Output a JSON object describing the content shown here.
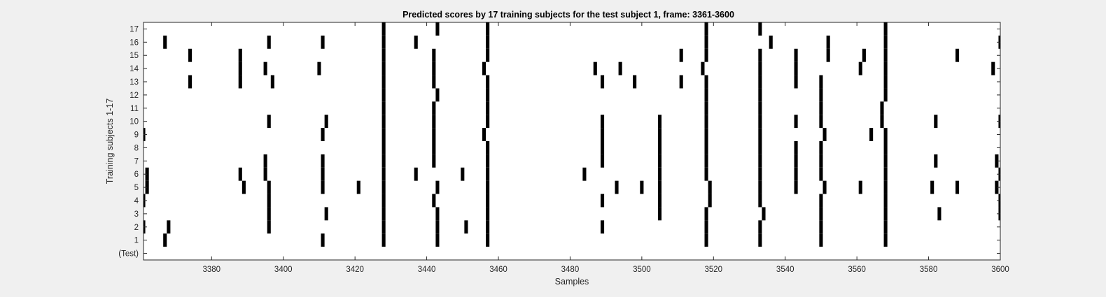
{
  "chart_data": {
    "type": "raster",
    "title": "Predicted scores by 17 training subjects for the test subject 1, frame: 3361-3600",
    "xlabel": "Samples",
    "ylabel": "Training subjects 1-17",
    "xlim": [
      3361,
      3600
    ],
    "x_ticks": [
      3380,
      3400,
      3420,
      3440,
      3460,
      3480,
      3500,
      3520,
      3540,
      3560,
      3580,
      3600
    ],
    "y_tick_labels": [
      "(Test)",
      "1",
      "2",
      "3",
      "4",
      "5",
      "6",
      "7",
      "8",
      "9",
      "10",
      "11",
      "12",
      "13",
      "14",
      "15",
      "16",
      "17"
    ],
    "grid": false,
    "mark_color": "#000000",
    "events": {
      "17": [
        3428,
        3443,
        3457,
        3518,
        3533,
        3568
      ],
      "16": [
        3367,
        3396,
        3411,
        3428,
        3437,
        3457,
        3518,
        3536,
        3552,
        3568,
        3600
      ],
      "15": [
        3374,
        3388,
        3428,
        3442,
        3457,
        3511,
        3518,
        3533,
        3543,
        3552,
        3562,
        3568,
        3588
      ],
      "14": [
        3388,
        3395,
        3410,
        3428,
        3442,
        3456,
        3487,
        3494,
        3517,
        3533,
        3543,
        3561,
        3568,
        3598
      ],
      "13": [
        3374,
        3388,
        3397,
        3428,
        3442,
        3457,
        3489,
        3498,
        3511,
        3518,
        3533,
        3543,
        3550,
        3568
      ],
      "12": [
        3428,
        3443,
        3457,
        3518,
        3533,
        3550,
        3568
      ],
      "11": [
        3428,
        3442,
        3457,
        3518,
        3533,
        3550,
        3567
      ],
      "10": [
        3396,
        3412,
        3428,
        3442,
        3457,
        3489,
        3505,
        3518,
        3533,
        3543,
        3550,
        3567,
        3582,
        3600
      ],
      "9": [
        3361,
        3411,
        3428,
        3442,
        3456,
        3489,
        3505,
        3518,
        3533,
        3551,
        3564,
        3568
      ],
      "8": [
        3428,
        3442,
        3457,
        3489,
        3505,
        3518,
        3533,
        3543,
        3550,
        3568
      ],
      "7": [
        3395,
        3411,
        3428,
        3442,
        3457,
        3489,
        3505,
        3518,
        3533,
        3543,
        3550,
        3568,
        3582,
        3599
      ],
      "6": [
        3362,
        3388,
        3395,
        3411,
        3428,
        3437,
        3450,
        3457,
        3484,
        3505,
        3518,
        3533,
        3543,
        3550,
        3568,
        3600
      ],
      "5": [
        3362,
        3389,
        3396,
        3411,
        3421,
        3428,
        3443,
        3457,
        3493,
        3500,
        3505,
        3519,
        3533,
        3543,
        3551,
        3561,
        3568,
        3581,
        3588,
        3599
      ],
      "4": [
        3361,
        3396,
        3428,
        3442,
        3457,
        3489,
        3505,
        3519,
        3533,
        3550,
        3568,
        3600
      ],
      "3": [
        3396,
        3412,
        3428,
        3443,
        3457,
        3505,
        3518,
        3534,
        3550,
        3568,
        3583,
        3600
      ],
      "2": [
        3361,
        3368,
        3396,
        3428,
        3443,
        3451,
        3457,
        3489,
        3518,
        3533,
        3550,
        3568
      ],
      "1": [
        3367,
        3411,
        3428,
        3443,
        3457,
        3518,
        3533,
        3550,
        3568
      ],
      "(Test)": []
    }
  }
}
